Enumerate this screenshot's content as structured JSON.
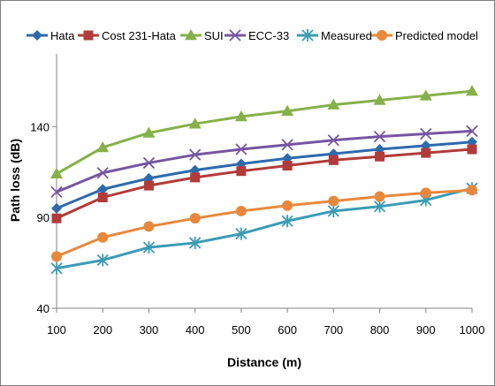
{
  "chart_data": {
    "type": "line",
    "title": "",
    "xlabel": "Distance (m)",
    "ylabel": "Path loss (dB)",
    "x": [
      100,
      200,
      300,
      400,
      500,
      600,
      700,
      800,
      900,
      1000
    ],
    "xlim": [
      100,
      1000
    ],
    "ylim": [
      40,
      180
    ],
    "yticks": [
      40,
      90,
      140
    ],
    "grid": false,
    "legend": "top",
    "series": [
      {
        "name": "Hata",
        "color": "#2e6aac",
        "marker": "diamond",
        "values": [
          95,
          105.5,
          111.5,
          116,
          119.5,
          122.5,
          125,
          127.5,
          129.5,
          131.5
        ]
      },
      {
        "name": "Cost 231-Hata",
        "color": "#b13b3b",
        "marker": "square",
        "values": [
          89.5,
          101,
          107.5,
          112,
          115.5,
          118.5,
          121.5,
          123.5,
          125.5,
          127.5
        ]
      },
      {
        "name": "SUI",
        "color": "#86b04a",
        "marker": "triangle",
        "values": [
          114,
          128.5,
          136.5,
          141.5,
          145.5,
          148.5,
          152,
          154.5,
          157,
          159.5
        ]
      },
      {
        "name": "ECC-33",
        "color": "#7556a0",
        "marker": "x",
        "values": [
          104,
          114.5,
          120,
          124.5,
          127.5,
          130,
          132.5,
          134.5,
          136,
          137.5
        ]
      },
      {
        "name": "Measured",
        "color": "#3c9bb4",
        "marker": "star",
        "values": [
          62,
          66.5,
          73.5,
          76,
          81,
          88,
          93.5,
          96,
          99.5,
          106
        ]
      },
      {
        "name": "Predicted model",
        "color": "#e8883c",
        "marker": "circle",
        "values": [
          68.5,
          79,
          85,
          89.5,
          93.5,
          96.5,
          99,
          101.5,
          103.5,
          105
        ]
      }
    ]
  }
}
